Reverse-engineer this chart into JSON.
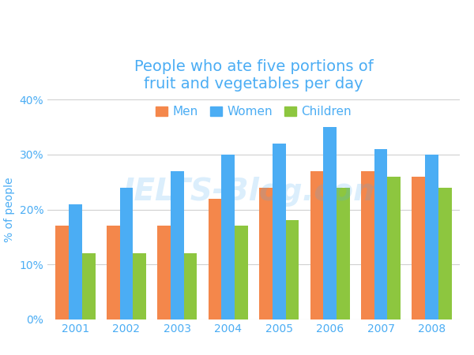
{
  "title": "People who ate five portions of\nfruit and vegetables per day",
  "ylabel": "% of people",
  "years": [
    2001,
    2002,
    2003,
    2004,
    2005,
    2006,
    2007,
    2008
  ],
  "men": [
    17,
    17,
    17,
    22,
    24,
    27,
    27,
    26
  ],
  "women": [
    21,
    24,
    27,
    30,
    32,
    35,
    31,
    30
  ],
  "children": [
    12,
    12,
    12,
    17,
    18,
    24,
    26,
    24
  ],
  "men_color": "#F4874B",
  "women_color": "#4BADF4",
  "children_color": "#8DC63F",
  "title_color": "#4BADF4",
  "ylabel_color": "#4BADF4",
  "tick_color": "#4BADF4",
  "grid_color": "#d0d0d0",
  "background_color": "#ffffff",
  "ylim": [
    0,
    40
  ],
  "yticks": [
    0,
    10,
    20,
    30,
    40
  ],
  "ytick_labels": [
    "0%",
    "10%",
    "20%",
    "30%",
    "40%"
  ],
  "bar_width": 0.26,
  "title_fontsize": 14,
  "legend_fontsize": 11,
  "tick_fontsize": 10,
  "ylabel_fontsize": 10
}
